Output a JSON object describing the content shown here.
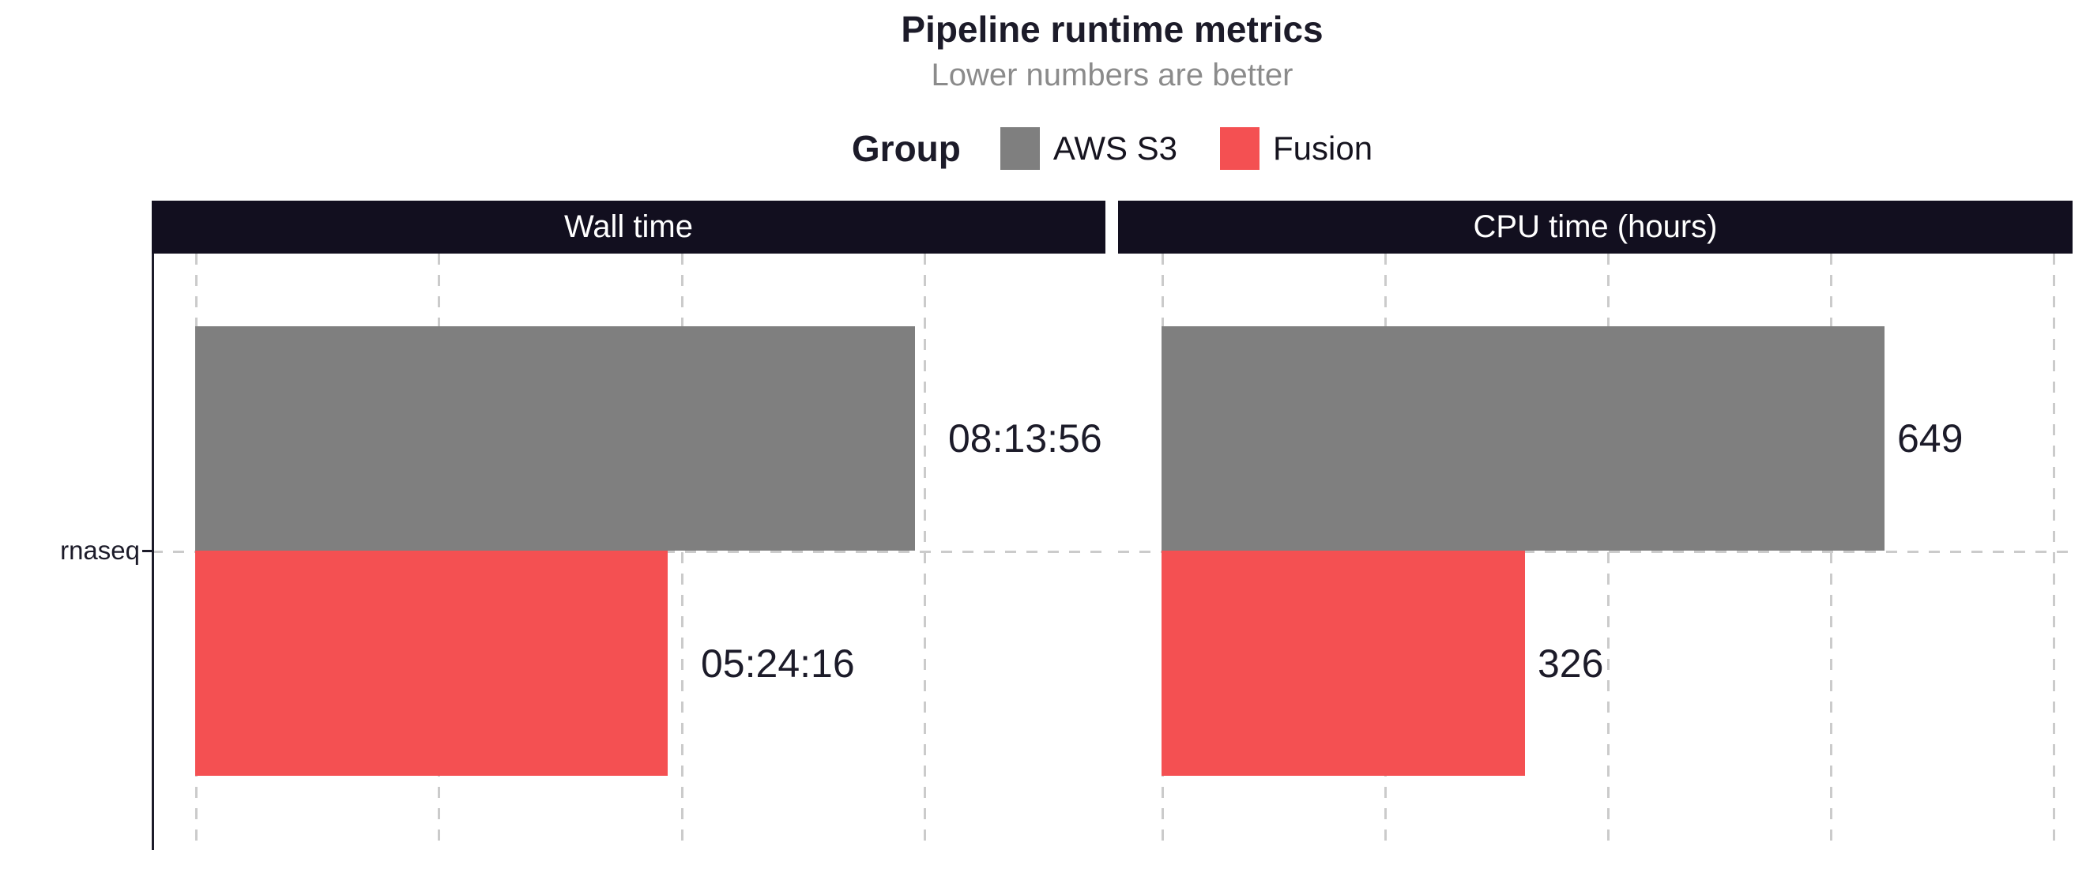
{
  "header": {
    "title": "Pipeline runtime metrics",
    "subtitle": "Lower numbers are better"
  },
  "legend": {
    "title": "Group",
    "items": [
      {
        "label": "AWS S3",
        "color": "#7f7f7f"
      },
      {
        "label": "Fusion",
        "color": "#f45052"
      }
    ]
  },
  "colors": {
    "strip_background": "#120f1f",
    "strip_text": "#ffffff",
    "dark_text": "#1c1b29",
    "subtitle_text": "#8b8b8b",
    "gridline": "#cbcbcb",
    "aws_s3_bar": "#7f7f7f",
    "fusion_bar": "#f45052"
  },
  "chart_data": [
    {
      "type": "bar",
      "orientation": "horizontal",
      "facet": "Wall time",
      "category": "rnaseq",
      "unit": "seconds",
      "series": [
        {
          "name": "AWS S3",
          "value": 29636,
          "label": "08:13:56"
        },
        {
          "name": "Fusion",
          "value": 19456,
          "label": "05:24:16"
        }
      ],
      "x_gridlines": [
        0,
        10000,
        20000,
        30000
      ],
      "xlim": [
        0,
        33000
      ],
      "grid_style": "dashed",
      "legend_position": "top"
    },
    {
      "type": "bar",
      "orientation": "horizontal",
      "facet": "CPU time (hours)",
      "category": "rnaseq",
      "unit": "hours",
      "series": [
        {
          "name": "AWS S3",
          "value": 649,
          "label": "649"
        },
        {
          "name": "Fusion",
          "value": 326,
          "label": "326"
        }
      ],
      "x_gridlines": [
        0,
        200,
        400,
        600,
        800
      ],
      "xlim": [
        0,
        830
      ],
      "grid_style": "dashed",
      "legend_position": "top"
    }
  ]
}
